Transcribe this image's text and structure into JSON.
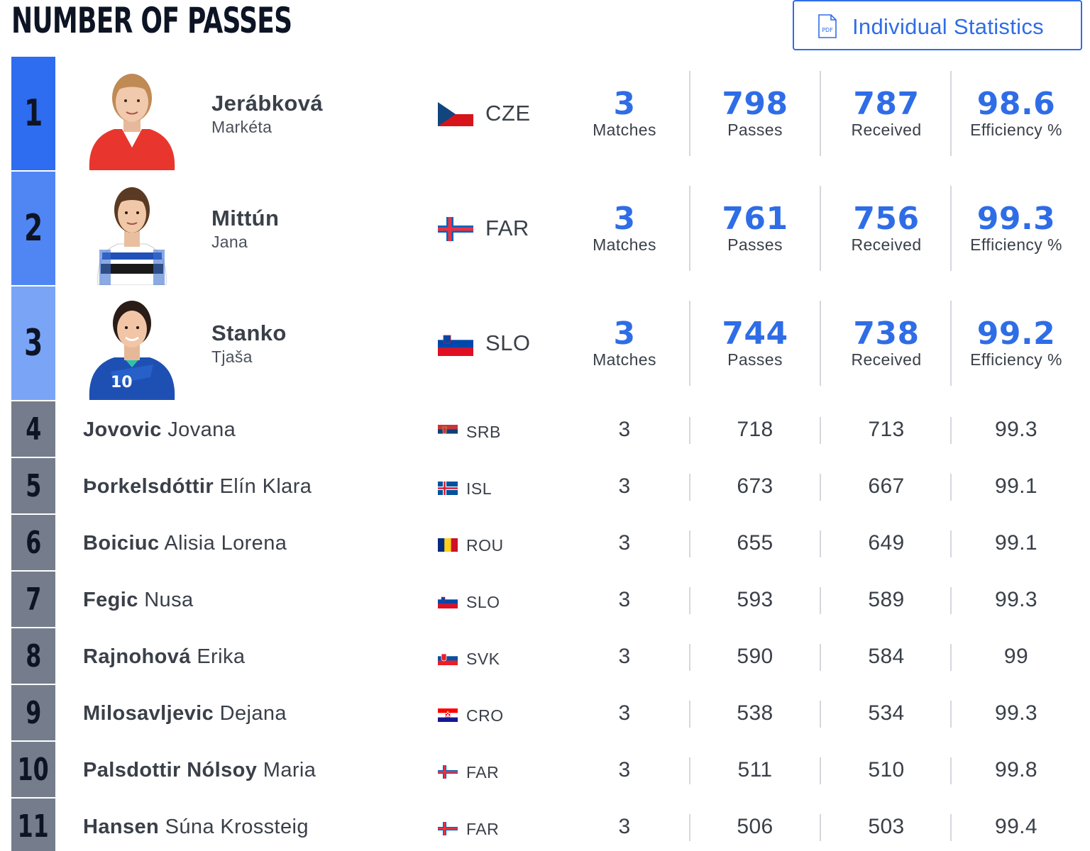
{
  "page": {
    "title": "NUMBER OF PASSES",
    "pdf_button": {
      "label": "Individual Statistics",
      "icon": "pdf-file-icon",
      "icon_text": "PDF"
    }
  },
  "colors": {
    "accent": "#2f6de6",
    "rank1": "#2e6cf0",
    "rank2": "#4f86f3",
    "rank3": "#7aa5f7",
    "rank_other": "#757d8c"
  },
  "top_players": [
    {
      "rank": "1",
      "surname": "Jerábková",
      "firstname": "Markéta",
      "country": "CZE",
      "matches": "3",
      "matches_label": "Matches",
      "passes": "798",
      "passes_label": "Passes",
      "received": "787",
      "received_label": "Received",
      "efficiency": "98.6",
      "efficiency_label": "Efficiency %"
    },
    {
      "rank": "2",
      "surname": "Mittún",
      "firstname": "Jana",
      "country": "FAR",
      "matches": "3",
      "matches_label": "Matches",
      "passes": "761",
      "passes_label": "Passes",
      "received": "756",
      "received_label": "Received",
      "efficiency": "99.3",
      "efficiency_label": "Efficiency %"
    },
    {
      "rank": "3",
      "surname": "Stanko",
      "firstname": "Tjaša",
      "country": "SLO",
      "matches": "3",
      "matches_label": "Matches",
      "passes": "744",
      "passes_label": "Passes",
      "received": "738",
      "received_label": "Received",
      "efficiency": "99.2",
      "efficiency_label": "Efficiency %"
    }
  ],
  "rows": [
    {
      "rank": "4",
      "surname": "Jovovic",
      "firstname": "Jovana",
      "country": "SRB",
      "matches": "3",
      "passes": "718",
      "received": "713",
      "efficiency": "99.3"
    },
    {
      "rank": "5",
      "surname": "Þorkelsdóttir",
      "firstname": "Elín Klara",
      "country": "ISL",
      "matches": "3",
      "passes": "673",
      "received": "667",
      "efficiency": "99.1"
    },
    {
      "rank": "6",
      "surname": "Boiciuc",
      "firstname": "Alisia Lorena",
      "country": "ROU",
      "matches": "3",
      "passes": "655",
      "received": "649",
      "efficiency": "99.1"
    },
    {
      "rank": "7",
      "surname": "Fegic",
      "firstname": "Nusa",
      "country": "SLO",
      "matches": "3",
      "passes": "593",
      "received": "589",
      "efficiency": "99.3"
    },
    {
      "rank": "8",
      "surname": "Rajnohová",
      "firstname": "Erika",
      "country": "SVK",
      "matches": "3",
      "passes": "590",
      "received": "584",
      "efficiency": "99"
    },
    {
      "rank": "9",
      "surname": "Milosavljevic",
      "firstname": "Dejana",
      "country": "CRO",
      "matches": "3",
      "passes": "538",
      "received": "534",
      "efficiency": "99.3"
    },
    {
      "rank": "10",
      "surname": "Palsdottir Nólsoy",
      "firstname": "Maria",
      "country": "FAR",
      "matches": "3",
      "passes": "511",
      "received": "510",
      "efficiency": "99.8"
    },
    {
      "rank": "11",
      "surname": "Hansen",
      "firstname": "Súna Krossteig",
      "country": "FAR",
      "matches": "3",
      "passes": "506",
      "received": "503",
      "efficiency": "99.4"
    }
  ]
}
